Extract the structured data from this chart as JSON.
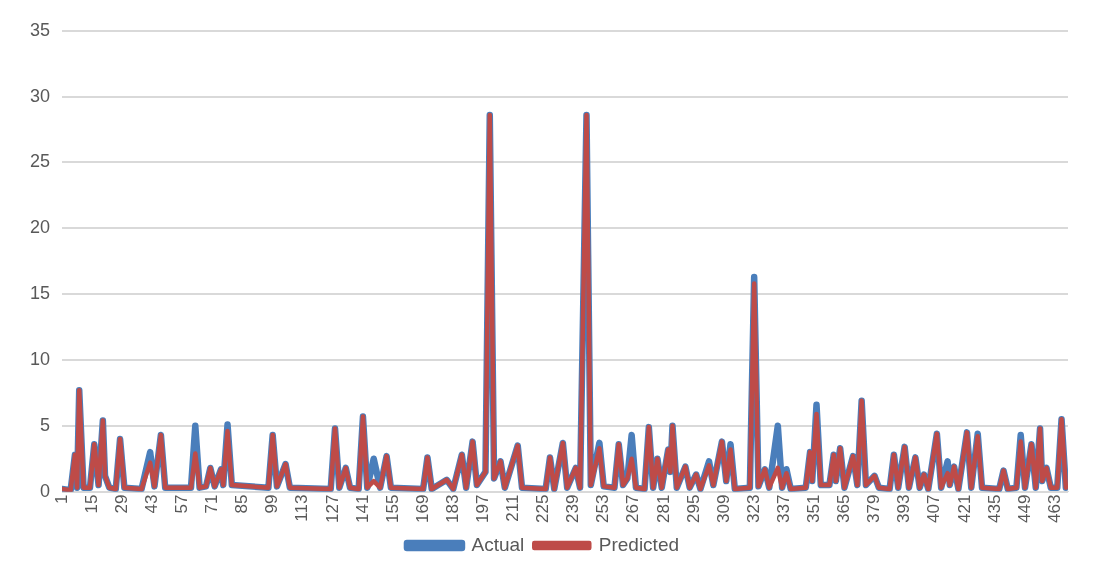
{
  "chart_data": {
    "type": "line",
    "x": [
      1,
      5,
      7,
      8,
      9,
      11,
      14,
      16,
      18,
      20,
      21,
      23,
      26,
      28,
      30,
      38,
      42,
      44,
      47,
      49,
      61,
      63,
      65,
      68,
      70,
      72,
      75,
      76,
      78,
      80,
      97,
      99,
      101,
      105,
      107,
      126,
      128,
      130,
      133,
      135,
      139,
      141,
      143,
      146,
      149,
      152,
      154,
      169,
      171,
      173,
      180,
      183,
      187,
      189,
      192,
      194,
      198,
      200,
      202,
      205,
      207,
      213,
      215,
      226,
      228,
      230,
      234,
      236,
      240,
      242,
      245,
      247,
      251,
      253,
      258,
      260,
      262,
      264,
      266,
      268,
      272,
      274,
      276,
      278,
      280,
      283,
      284,
      285,
      287,
      291,
      293,
      296,
      298,
      302,
      304,
      308,
      310,
      312,
      314,
      321,
      323,
      325,
      328,
      330,
      334,
      336,
      338,
      340,
      347,
      349,
      350,
      352,
      354,
      358,
      360,
      361,
      363,
      365,
      369,
      371,
      373,
      375,
      379,
      381,
      386,
      388,
      390,
      393,
      395,
      398,
      400,
      402,
      404,
      408,
      410,
      413,
      414,
      416,
      418,
      422,
      424,
      427,
      429,
      437,
      439,
      441,
      445,
      447,
      449,
      452,
      454,
      456,
      457,
      459,
      461,
      464,
      466,
      468
    ],
    "series": [
      {
        "name": "Actual",
        "color": "#4a7ebb",
        "values": [
          0.2,
          0.1,
          2.8,
          0.3,
          7.7,
          0.3,
          0.3,
          3.6,
          0.5,
          5.4,
          1.2,
          0.3,
          0.2,
          4.0,
          0.3,
          0.2,
          3.0,
          0.4,
          4.3,
          0.3,
          0.3,
          5.0,
          0.3,
          0.4,
          1.8,
          0.4,
          1.7,
          0.5,
          5.1,
          0.5,
          0.3,
          4.3,
          0.4,
          2.1,
          0.3,
          0.2,
          4.8,
          0.3,
          1.8,
          0.3,
          0.2,
          5.7,
          0.3,
          2.5,
          0.3,
          2.7,
          0.3,
          0.2,
          2.6,
          0.2,
          0.9,
          0.2,
          2.8,
          0.3,
          3.8,
          0.5,
          1.5,
          28.6,
          1.0,
          2.3,
          0.3,
          3.5,
          0.3,
          0.2,
          2.6,
          0.2,
          3.7,
          0.3,
          1.8,
          0.3,
          28.6,
          0.5,
          3.7,
          0.4,
          0.3,
          3.6,
          0.5,
          1.0,
          4.3,
          0.3,
          0.2,
          4.9,
          0.3,
          2.5,
          0.3,
          3.2,
          1.5,
          5.0,
          0.3,
          1.9,
          0.3,
          1.3,
          0.2,
          2.3,
          0.5,
          3.8,
          0.8,
          3.6,
          0.2,
          0.3,
          16.3,
          0.4,
          1.7,
          0.3,
          5.0,
          0.3,
          1.7,
          0.2,
          0.3,
          3.0,
          0.8,
          6.6,
          0.5,
          0.5,
          2.8,
          0.8,
          3.3,
          0.3,
          2.7,
          0.5,
          6.9,
          0.5,
          1.2,
          0.3,
          0.2,
          2.8,
          0.3,
          3.4,
          0.3,
          2.6,
          0.3,
          1.3,
          0.2,
          4.4,
          0.3,
          2.3,
          0.5,
          1.9,
          0.2,
          4.5,
          0.3,
          4.4,
          0.3,
          0.2,
          1.6,
          0.2,
          0.3,
          4.3,
          0.3,
          3.6,
          0.3,
          4.8,
          0.8,
          1.8,
          0.3,
          0.3,
          5.5,
          0.3
        ]
      },
      {
        "name": "Predicted",
        "color": "#be4b48",
        "values": [
          0.2,
          0.1,
          2.8,
          0.3,
          7.7,
          0.3,
          0.3,
          3.6,
          0.5,
          5.4,
          1.2,
          0.3,
          0.2,
          4.0,
          0.3,
          0.2,
          2.2,
          0.4,
          4.3,
          0.3,
          0.3,
          2.9,
          0.3,
          0.4,
          1.8,
          0.4,
          1.7,
          0.5,
          4.6,
          0.5,
          0.3,
          4.3,
          0.4,
          2.1,
          0.3,
          0.2,
          4.8,
          0.3,
          1.8,
          0.3,
          0.2,
          5.7,
          0.3,
          0.8,
          0.3,
          2.7,
          0.3,
          0.2,
          2.6,
          0.2,
          0.9,
          0.2,
          2.8,
          0.3,
          3.8,
          0.5,
          1.5,
          28.6,
          1.0,
          2.3,
          0.3,
          3.5,
          0.3,
          0.2,
          2.6,
          0.2,
          3.7,
          0.3,
          1.8,
          0.3,
          28.6,
          0.5,
          3.3,
          0.4,
          0.3,
          3.6,
          0.5,
          1.0,
          2.5,
          0.3,
          0.2,
          4.9,
          0.3,
          2.5,
          0.3,
          3.2,
          1.5,
          5.0,
          0.3,
          1.9,
          0.3,
          1.3,
          0.2,
          2.0,
          0.5,
          3.8,
          0.8,
          3.2,
          0.2,
          0.3,
          15.8,
          0.4,
          1.7,
          0.3,
          1.8,
          0.3,
          1.4,
          0.2,
          0.3,
          3.0,
          0.8,
          5.9,
          0.5,
          0.5,
          2.8,
          0.8,
          3.3,
          0.3,
          2.7,
          0.5,
          6.9,
          0.5,
          1.2,
          0.3,
          0.2,
          2.8,
          0.3,
          3.4,
          0.3,
          2.6,
          0.3,
          1.3,
          0.2,
          4.4,
          0.3,
          1.4,
          0.5,
          1.9,
          0.2,
          4.5,
          0.3,
          4.2,
          0.3,
          0.2,
          1.6,
          0.2,
          0.3,
          3.8,
          0.3,
          3.6,
          0.3,
          4.8,
          0.8,
          1.8,
          0.3,
          0.3,
          5.5,
          0.3
        ]
      }
    ],
    "xlim": [
      1,
      469
    ],
    "xticks": [
      1,
      15,
      29,
      43,
      57,
      71,
      85,
      99,
      113,
      127,
      141,
      155,
      169,
      183,
      197,
      211,
      225,
      239,
      253,
      267,
      281,
      295,
      309,
      323,
      337,
      351,
      365,
      379,
      393,
      407,
      421,
      435,
      449,
      463
    ],
    "ylim": [
      0,
      35
    ],
    "yticks": [
      0,
      5,
      10,
      15,
      20,
      25,
      30,
      35
    ],
    "grid": "y",
    "legend": "bottom",
    "marker": "none",
    "line_style": "solid"
  }
}
